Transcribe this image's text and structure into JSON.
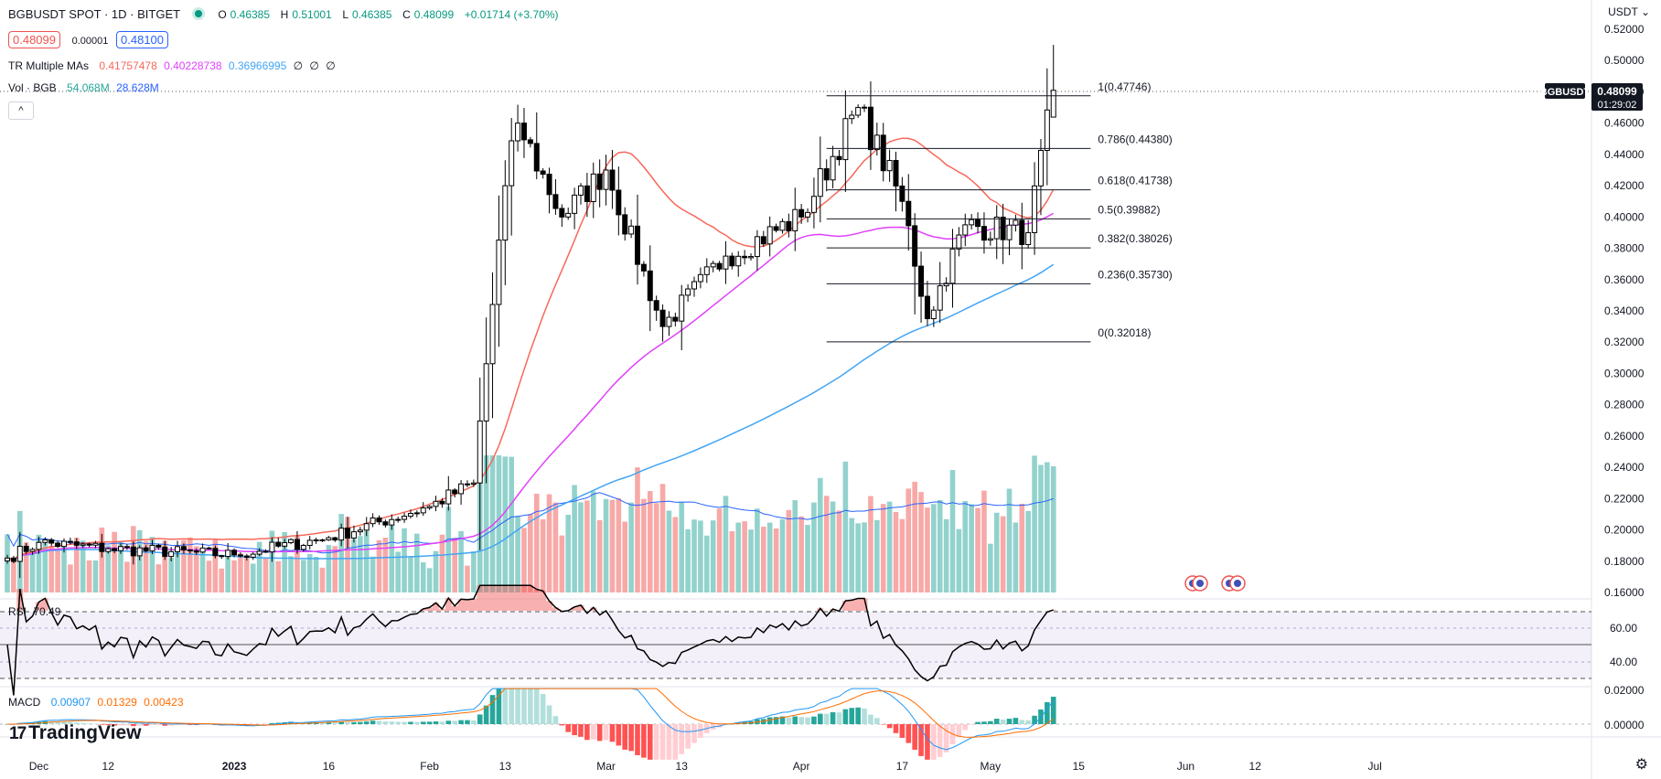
{
  "header": {
    "symbol": "BGBUSDT SPOT · 1D · BITGET",
    "open_label": "O",
    "open": "0.46385",
    "high_label": "H",
    "high": "0.51001",
    "low_label": "L",
    "low": "0.46385",
    "close_label": "C",
    "close": "0.48099",
    "change": "+0.01714 (+3.70%)",
    "bid": "0.48099",
    "spread": "0.00001",
    "ask": "0.48100"
  },
  "indicators": {
    "ma_name": "TR Multiple MAs",
    "ma_values": [
      "0.41757478",
      "0.40228738",
      "0.36966995",
      "∅",
      "∅",
      "∅"
    ],
    "vol_name": "Vol · BGB",
    "vol_values": [
      "54.068M",
      "28.628M"
    ],
    "rsi_name": "RSI",
    "rsi_value": "70.49",
    "macd_name": "MACD",
    "macd_values": [
      "0.00907",
      "0.01329",
      "0.00423"
    ]
  },
  "price_axis": {
    "currency": "USDT",
    "ticks": [
      "0.52000",
      "0.50000",
      "0.48000",
      "0.46000",
      "0.44000",
      "0.42000",
      "0.40000",
      "0.38000",
      "0.36000",
      "0.34000",
      "0.32000",
      "0.30000",
      "0.28000",
      "0.26000",
      "0.24000",
      "0.22000",
      "0.20000",
      "0.18000",
      "0.16000"
    ],
    "last_label": "BGBUSDT",
    "last_price": "0.48099",
    "countdown": "01:29:02"
  },
  "rsi_axis": {
    "ticks": [
      "60.00",
      "40.00"
    ]
  },
  "macd_axis": {
    "ticks": [
      "0.02000",
      "0.00000"
    ]
  },
  "time_axis": {
    "ticks": [
      "Dec",
      "12",
      "2023",
      "16",
      "Feb",
      "13",
      "Mar",
      "13",
      "Apr",
      "17",
      "May",
      "15",
      "Jun",
      "12",
      "Jul"
    ]
  },
  "fib_levels": [
    {
      "label": "1(0.47746)",
      "value": 0.47746
    },
    {
      "label": "0.786(0.44380)",
      "value": 0.4438
    },
    {
      "label": "0.618(0.41738)",
      "value": 0.41738
    },
    {
      "label": "0.5(0.39882)",
      "value": 0.39882
    },
    {
      "label": "0.382(0.38026)",
      "value": 0.38026
    },
    {
      "label": "0.236(0.35730)",
      "value": 0.3573
    },
    {
      "label": "0(0.32018)",
      "value": 0.32018
    }
  ],
  "colors": {
    "up": "#26a69a",
    "down": "#ef5350",
    "candle": "#000000",
    "ma1": "#f7685b",
    "ma2": "#e040fb",
    "ma3": "#42a5f5",
    "vol_ma": "#2962ff",
    "rsi": "#000000",
    "rsi_band": "#7e57c2",
    "macd": "#2196f3",
    "signal": "#ff6d00"
  },
  "logo_text": "TradingView",
  "chart_data": {
    "type": "candlestick",
    "ylim": [
      0.15,
      0.53
    ],
    "series": [
      {
        "name": "BGBUSDT",
        "close_last": 0.48099
      },
      {
        "name": "TR Multiple MAs",
        "last": [
          0.41757478,
          0.40228738,
          0.36966995
        ]
      }
    ],
    "keypoints": [
      {
        "date": "2022-11-26",
        "close": 0.182
      },
      {
        "date": "2022-12-01",
        "close": 0.192
      },
      {
        "date": "2022-12-12",
        "close": 0.188
      },
      {
        "date": "2023-01-01",
        "close": 0.184
      },
      {
        "date": "2023-01-16",
        "close": 0.195
      },
      {
        "date": "2023-02-01",
        "close": 0.215
      },
      {
        "date": "2023-02-08",
        "close": 0.23
      },
      {
        "date": "2023-02-13",
        "close": 0.42
      },
      {
        "date": "2023-02-15",
        "close": 0.46
      },
      {
        "date": "2023-02-22",
        "close": 0.4
      },
      {
        "date": "2023-03-01",
        "close": 0.43
      },
      {
        "date": "2023-03-10",
        "close": 0.33
      },
      {
        "date": "2023-03-20",
        "close": 0.375
      },
      {
        "date": "2023-04-01",
        "close": 0.4
      },
      {
        "date": "2023-04-10",
        "close": 0.47
      },
      {
        "date": "2023-04-17",
        "close": 0.41
      },
      {
        "date": "2023-04-21",
        "close": 0.335
      },
      {
        "date": "2023-04-27",
        "close": 0.395
      },
      {
        "date": "2023-05-07",
        "close": 0.39
      },
      {
        "date": "2023-05-11",
        "close": 0.48099
      }
    ],
    "rsi_last": 70.49,
    "macd_last": [
      0.00907,
      0.01329,
      0.00423
    ]
  }
}
